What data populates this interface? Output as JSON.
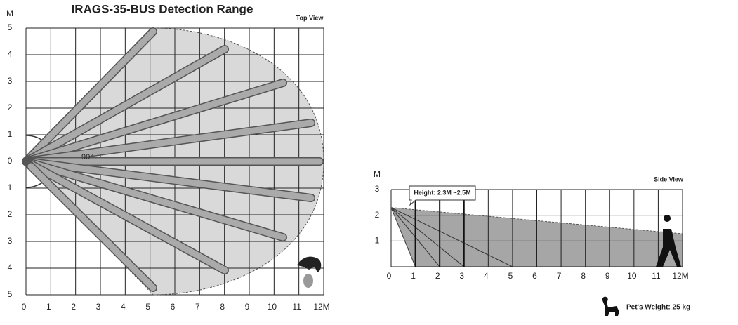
{
  "top_view": {
    "title": "IRAGS-35-BUS Detection Range",
    "view_label": "Top View",
    "y_unit": "M",
    "y_labels": [
      "5",
      "4",
      "3",
      "2",
      "1",
      "0",
      "1",
      "2",
      "3",
      "4",
      "5"
    ],
    "x_labels": [
      "0",
      "1",
      "2",
      "3",
      "4",
      "5",
      "6",
      "7",
      "8",
      "9",
      "10",
      "11",
      "12M"
    ],
    "angle_label": "90°"
  },
  "side_view": {
    "view_label": "Side View",
    "y_unit": "M",
    "y_labels": [
      "3",
      "2",
      "1"
    ],
    "x_labels": [
      "0",
      "1",
      "2",
      "3",
      "4",
      "5",
      "6",
      "7",
      "8",
      "9",
      "10",
      "11",
      "12M"
    ],
    "height_label": "Height: 2.3M ~2.5M"
  },
  "pet_weight": "Pet's Weight: 25 kg"
}
